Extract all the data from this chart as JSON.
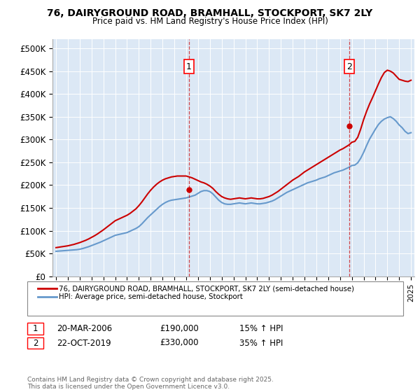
{
  "title": "76, DAIRYGROUND ROAD, BRAMHALL, STOCKPORT, SK7 2LY",
  "subtitle": "Price paid vs. HM Land Registry's House Price Index (HPI)",
  "fig_bg_color": "#ffffff",
  "plot_bg_color": "#dce8f5",
  "ylim": [
    0,
    520000
  ],
  "yticks": [
    0,
    50000,
    100000,
    150000,
    200000,
    250000,
    300000,
    350000,
    400000,
    450000,
    500000
  ],
  "ytick_labels": [
    "£0",
    "£50K",
    "£100K",
    "£150K",
    "£200K",
    "£250K",
    "£300K",
    "£350K",
    "£400K",
    "£450K",
    "£500K"
  ],
  "xlim_start": 1994.7,
  "xlim_end": 2025.3,
  "xticks": [
    1995,
    1996,
    1997,
    1998,
    1999,
    2000,
    2001,
    2002,
    2003,
    2004,
    2005,
    2006,
    2007,
    2008,
    2009,
    2010,
    2011,
    2012,
    2013,
    2014,
    2015,
    2016,
    2017,
    2018,
    2019,
    2020,
    2021,
    2022,
    2023,
    2024,
    2025
  ],
  "red_line_color": "#cc0000",
  "blue_line_color": "#6699cc",
  "grid_color": "#ffffff",
  "marker1_x": 2006.22,
  "marker1_y": 190000,
  "marker2_x": 2019.81,
  "marker2_y": 330000,
  "legend_red": "76, DAIRYGROUND ROAD, BRAMHALL, STOCKPORT, SK7 2LY (semi-detached house)",
  "legend_blue": "HPI: Average price, semi-detached house, Stockport",
  "annotation1_date": "20-MAR-2006",
  "annotation1_price": "£190,000",
  "annotation1_hpi": "15% ↑ HPI",
  "annotation2_date": "22-OCT-2019",
  "annotation2_price": "£330,000",
  "annotation2_hpi": "35% ↑ HPI",
  "footer": "Contains HM Land Registry data © Crown copyright and database right 2025.\nThis data is licensed under the Open Government Licence v3.0.",
  "hpi_data_x": [
    1995.0,
    1995.25,
    1995.5,
    1995.75,
    1996.0,
    1996.25,
    1996.5,
    1996.75,
    1997.0,
    1997.25,
    1997.5,
    1997.75,
    1998.0,
    1998.25,
    1998.5,
    1998.75,
    1999.0,
    1999.25,
    1999.5,
    1999.75,
    2000.0,
    2000.25,
    2000.5,
    2000.75,
    2001.0,
    2001.25,
    2001.5,
    2001.75,
    2002.0,
    2002.25,
    2002.5,
    2002.75,
    2003.0,
    2003.25,
    2003.5,
    2003.75,
    2004.0,
    2004.25,
    2004.5,
    2004.75,
    2005.0,
    2005.25,
    2005.5,
    2005.75,
    2006.0,
    2006.25,
    2006.5,
    2006.75,
    2007.0,
    2007.25,
    2007.5,
    2007.75,
    2008.0,
    2008.25,
    2008.5,
    2008.75,
    2009.0,
    2009.25,
    2009.5,
    2009.75,
    2010.0,
    2010.25,
    2010.5,
    2010.75,
    2011.0,
    2011.25,
    2011.5,
    2011.75,
    2012.0,
    2012.25,
    2012.5,
    2012.75,
    2013.0,
    2013.25,
    2013.5,
    2013.75,
    2014.0,
    2014.25,
    2014.5,
    2014.75,
    2015.0,
    2015.25,
    2015.5,
    2015.75,
    2016.0,
    2016.25,
    2016.5,
    2016.75,
    2017.0,
    2017.25,
    2017.5,
    2017.75,
    2018.0,
    2018.25,
    2018.5,
    2018.75,
    2019.0,
    2019.25,
    2019.5,
    2019.75,
    2020.0,
    2020.25,
    2020.5,
    2020.75,
    2021.0,
    2021.25,
    2021.5,
    2021.75,
    2022.0,
    2022.25,
    2022.5,
    2022.75,
    2023.0,
    2023.25,
    2023.5,
    2023.75,
    2024.0,
    2024.25,
    2024.5,
    2024.75,
    2025.0
  ],
  "hpi_data_y": [
    55000,
    55500,
    56000,
    56500,
    57000,
    57500,
    58000,
    58500,
    59500,
    61000,
    63000,
    65000,
    67500,
    70000,
    72500,
    75000,
    78000,
    81000,
    84000,
    87000,
    90000,
    91500,
    93000,
    94500,
    96000,
    99000,
    102000,
    105000,
    109000,
    115000,
    122000,
    129000,
    135000,
    141000,
    147000,
    153000,
    158000,
    162000,
    165000,
    167000,
    168000,
    169000,
    170000,
    171000,
    172000,
    174000,
    176000,
    178000,
    182000,
    186000,
    188000,
    188000,
    186000,
    181000,
    174000,
    167000,
    162000,
    159000,
    158000,
    158000,
    159000,
    160000,
    161000,
    160000,
    159000,
    160000,
    161000,
    160000,
    159000,
    159000,
    160000,
    161000,
    163000,
    165000,
    168000,
    172000,
    176000,
    180000,
    184000,
    187000,
    190000,
    193000,
    196000,
    199000,
    202000,
    205000,
    207000,
    209000,
    211000,
    214000,
    216000,
    218000,
    221000,
    224000,
    227000,
    229000,
    231000,
    233000,
    236000,
    239000,
    243000,
    244000,
    249000,
    259000,
    272000,
    287000,
    301000,
    312000,
    323000,
    333000,
    340000,
    345000,
    348000,
    350000,
    346000,
    340000,
    332000,
    326000,
    318000,
    313000,
    315000
  ],
  "red_data_x": [
    1995.0,
    1995.25,
    1995.5,
    1995.75,
    1996.0,
    1996.25,
    1996.5,
    1996.75,
    1997.0,
    1997.25,
    1997.5,
    1997.75,
    1998.0,
    1998.25,
    1998.5,
    1998.75,
    1999.0,
    1999.25,
    1999.5,
    1999.75,
    2000.0,
    2000.25,
    2000.5,
    2000.75,
    2001.0,
    2001.25,
    2001.5,
    2001.75,
    2002.0,
    2002.25,
    2002.5,
    2002.75,
    2003.0,
    2003.25,
    2003.5,
    2003.75,
    2004.0,
    2004.25,
    2004.5,
    2004.75,
    2005.0,
    2005.25,
    2005.5,
    2005.75,
    2006.0,
    2006.25,
    2006.5,
    2006.75,
    2007.0,
    2007.25,
    2007.5,
    2007.75,
    2008.0,
    2008.25,
    2008.5,
    2008.75,
    2009.0,
    2009.25,
    2009.5,
    2009.75,
    2010.0,
    2010.25,
    2010.5,
    2010.75,
    2011.0,
    2011.25,
    2011.5,
    2011.75,
    2012.0,
    2012.25,
    2012.5,
    2012.75,
    2013.0,
    2013.25,
    2013.5,
    2013.75,
    2014.0,
    2014.25,
    2014.5,
    2014.75,
    2015.0,
    2015.25,
    2015.5,
    2015.75,
    2016.0,
    2016.25,
    2016.5,
    2016.75,
    2017.0,
    2017.25,
    2017.5,
    2017.75,
    2018.0,
    2018.25,
    2018.5,
    2018.75,
    2019.0,
    2019.25,
    2019.5,
    2019.75,
    2020.0,
    2020.25,
    2020.5,
    2020.75,
    2021.0,
    2021.25,
    2021.5,
    2021.75,
    2022.0,
    2022.25,
    2022.5,
    2022.75,
    2023.0,
    2023.25,
    2023.5,
    2023.75,
    2024.0,
    2024.25,
    2024.5,
    2024.75,
    2025.0
  ],
  "red_data_y": [
    63000,
    64000,
    65000,
    66000,
    67000,
    68500,
    70000,
    72000,
    74000,
    76500,
    79000,
    82000,
    85500,
    89000,
    93000,
    97500,
    102000,
    107000,
    112000,
    117000,
    122000,
    125000,
    128000,
    131000,
    134000,
    138000,
    143000,
    148000,
    155000,
    163000,
    172000,
    181000,
    189000,
    196000,
    202000,
    207000,
    211000,
    214000,
    216000,
    218000,
    219000,
    220000,
    220000,
    220000,
    220000,
    218000,
    216000,
    213000,
    210000,
    207000,
    205000,
    202000,
    198000,
    193000,
    186000,
    180000,
    175000,
    172000,
    170000,
    169000,
    170000,
    171000,
    172000,
    171000,
    170000,
    171000,
    172000,
    171000,
    170000,
    170000,
    171000,
    173000,
    175000,
    178000,
    182000,
    186000,
    191000,
    196000,
    201000,
    206000,
    211000,
    215000,
    219000,
    224000,
    229000,
    233000,
    237000,
    241000,
    245000,
    249000,
    253000,
    257000,
    261000,
    265000,
    269000,
    273000,
    277000,
    280000,
    284000,
    288000,
    294000,
    296000,
    305000,
    323000,
    344000,
    362000,
    378000,
    392000,
    407000,
    422000,
    436000,
    447000,
    452000,
    450000,
    446000,
    439000,
    432000,
    430000,
    428000,
    427000,
    430000
  ]
}
